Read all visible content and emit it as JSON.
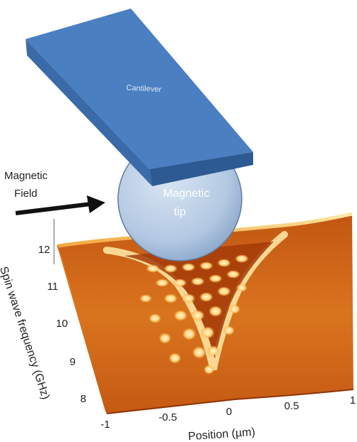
{
  "cantilever": {
    "label": "Cantilever"
  },
  "tip": {
    "line1": "Magnetic",
    "line2": "tip"
  },
  "field": {
    "line1": "Magnetic",
    "line2": "Field"
  },
  "axes": {
    "xlabel": "Position (µm)",
    "ylabel": "Spin wave frequency (GHz)",
    "xticks": [
      "-1",
      "-0.5",
      "0",
      "0.5",
      "1"
    ],
    "yticks": [
      "8",
      "9",
      "10",
      "11",
      "12"
    ]
  },
  "colors": {
    "cantilever_top": "#4a7fc1",
    "cantilever_side": "#2d5a92",
    "tip": "#b9cde4",
    "surface_dark": "#b9440a",
    "surface_light": "#fff2c0"
  }
}
